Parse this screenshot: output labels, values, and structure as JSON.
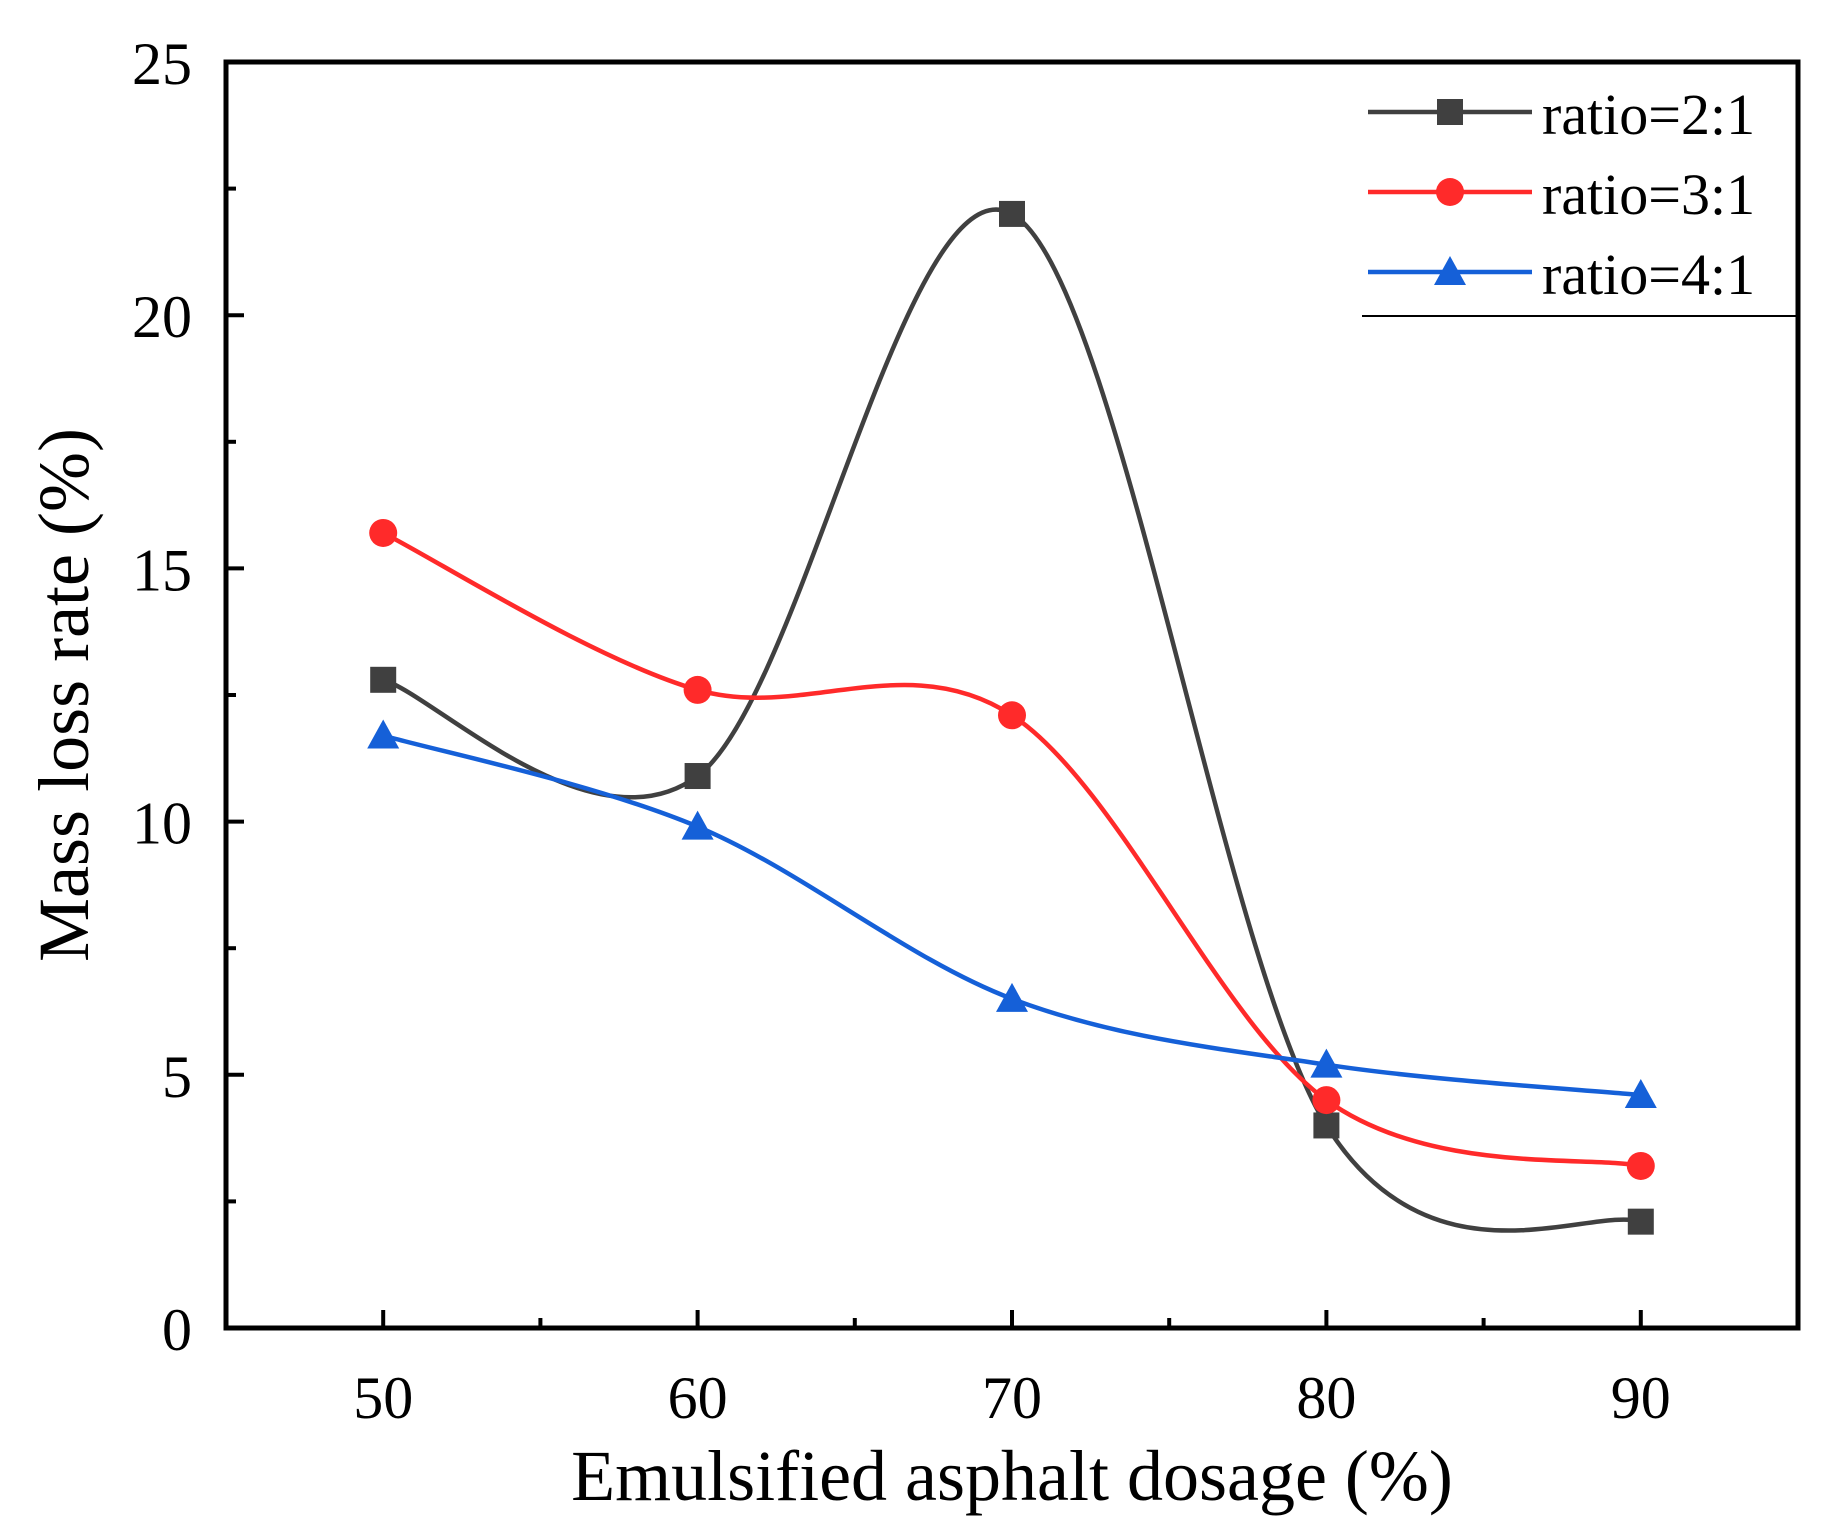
{
  "chart_data": {
    "type": "line",
    "title": "",
    "xlabel": "Emulsified asphalt dosage (%)",
    "ylabel": "Mass loss rate (%)",
    "x": [
      50,
      60,
      70,
      80,
      90
    ],
    "xlim": [
      45,
      95
    ],
    "ylim": [
      0,
      25
    ],
    "xticks": [
      "50",
      "60",
      "70",
      "80",
      "90"
    ],
    "yticks": [
      "0",
      "5",
      "10",
      "15",
      "20",
      "25"
    ],
    "grid": false,
    "smooth": true,
    "legend_position": "top-right",
    "series": [
      {
        "name": "ratio=2:1",
        "color": "#404040",
        "marker": "square",
        "values": [
          12.8,
          10.9,
          22.0,
          4.0,
          2.1
        ]
      },
      {
        "name": "ratio=3:1",
        "color": "#ff2a2a",
        "marker": "circle",
        "values": [
          15.7,
          12.6,
          12.1,
          4.5,
          3.2
        ]
      },
      {
        "name": "ratio=4:1",
        "color": "#1560d8",
        "marker": "triangle",
        "values": [
          11.7,
          9.9,
          6.5,
          5.2,
          4.6
        ]
      }
    ]
  }
}
